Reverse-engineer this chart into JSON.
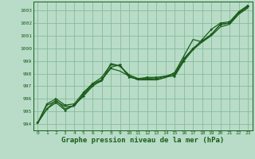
{
  "background_color": "#b8dcc8",
  "grid_color": "#88bb99",
  "line_color": "#1a5c1a",
  "marker_color": "#1a5c1a",
  "xlabel": "Graphe pression niveau de la mer (hPa)",
  "xlabel_fontsize": 6.5,
  "ylim": [
    993.5,
    1003.7
  ],
  "xlim": [
    -0.5,
    23.5
  ],
  "yticks": [
    994,
    995,
    996,
    997,
    998,
    999,
    1000,
    1001,
    1002,
    1003
  ],
  "xticks": [
    0,
    1,
    2,
    3,
    4,
    5,
    6,
    7,
    8,
    9,
    10,
    11,
    12,
    13,
    14,
    15,
    16,
    17,
    18,
    19,
    20,
    21,
    22,
    23
  ],
  "series": [
    {
      "y": [
        994.1,
        995.2,
        995.7,
        995.1,
        995.5,
        996.2,
        997.0,
        997.5,
        998.5,
        998.7,
        997.7,
        997.6,
        997.7,
        997.7,
        997.8,
        997.8,
        999.0,
        999.9,
        1000.7,
        1001.5,
        1002.0,
        1002.1,
        1002.9,
        1003.4
      ],
      "markers": true,
      "lw": 0.9
    },
    {
      "y": [
        994.1,
        995.2,
        995.9,
        995.2,
        995.5,
        996.3,
        997.1,
        997.4,
        998.8,
        998.6,
        997.8,
        997.5,
        997.6,
        997.5,
        997.7,
        998.1,
        999.4,
        1000.7,
        1000.5,
        1001.1,
        1001.9,
        1002.0,
        1002.8,
        1003.3
      ],
      "markers": false,
      "lw": 0.9
    },
    {
      "y": [
        994.1,
        995.5,
        995.8,
        995.4,
        995.4,
        996.4,
        997.2,
        997.5,
        998.4,
        998.2,
        997.8,
        997.5,
        997.5,
        997.5,
        997.7,
        997.9,
        999.1,
        999.9,
        1000.5,
        1001.0,
        1001.7,
        1001.9,
        1002.7,
        1003.2
      ],
      "markers": false,
      "lw": 0.9
    },
    {
      "y": [
        994.1,
        995.6,
        996.0,
        995.5,
        995.6,
        996.5,
        997.2,
        997.7,
        998.7,
        998.6,
        997.9,
        997.6,
        997.6,
        997.6,
        997.8,
        998.0,
        999.2,
        1000.0,
        1000.6,
        1001.1,
        1001.9,
        1002.0,
        1002.8,
        1003.3
      ],
      "markers": true,
      "lw": 0.9
    }
  ]
}
